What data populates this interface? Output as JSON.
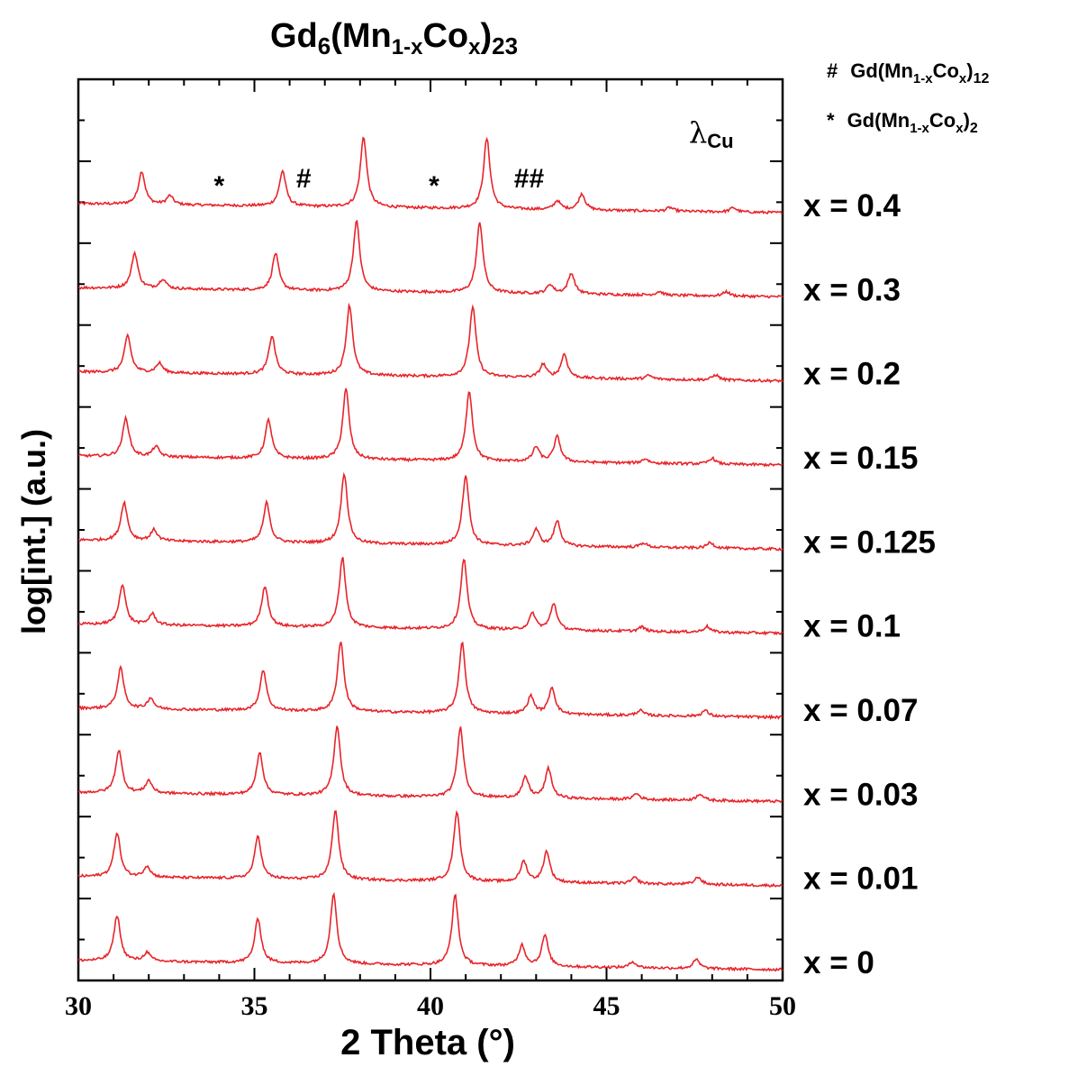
{
  "chart_data": {
    "type": "line",
    "title": {
      "main": "Gd",
      "sub1": "6",
      "mid1": "(Mn",
      "sub2": "1-x",
      "mid2": "Co",
      "sub3": "x",
      "mid3": ")",
      "sub4": "23"
    },
    "xlabel": "2 Theta (°)",
    "ylabel": "log[int.] (a.u.)",
    "xlim": [
      30,
      50
    ],
    "x_ticks": [
      "30",
      "35",
      "40",
      "45",
      "50"
    ],
    "grid": false,
    "wavelength_label": {
      "symbol": "λ",
      "sub": "Cu"
    },
    "legend": [
      {
        "symbol": "#",
        "text": "Gd(Mn",
        "sub1": "1-x",
        "mid": "Co",
        "sub2": "x",
        "end": ")",
        "sub3": "12"
      },
      {
        "symbol": "*",
        "text": "Gd(Mn",
        "sub1": "1-x",
        "mid": "Co",
        "sub2": "x",
        "end": ")",
        "sub3": "2"
      }
    ],
    "phase_markers": [
      {
        "symbol": "*",
        "x": 34.0
      },
      {
        "symbol": "#",
        "x": 36.4
      },
      {
        "symbol": "*",
        "x": 40.1
      },
      {
        "symbol": "##",
        "x": 42.8
      }
    ],
    "color": "#e8242a",
    "series": [
      {
        "name": "x = 0.4",
        "x": 0.4,
        "peaks": [
          [
            31.8,
            0.45
          ],
          [
            32.6,
            0.12
          ],
          [
            35.8,
            0.48
          ],
          [
            38.1,
            0.95
          ],
          [
            41.6,
            0.95
          ],
          [
            43.6,
            0.12
          ],
          [
            44.3,
            0.22
          ],
          [
            46.8,
            0.05
          ],
          [
            48.6,
            0.06
          ]
        ]
      },
      {
        "name": "x = 0.3",
        "x": 0.3,
        "peaks": [
          [
            31.6,
            0.48
          ],
          [
            32.4,
            0.13
          ],
          [
            35.6,
            0.5
          ],
          [
            37.9,
            0.95
          ],
          [
            41.4,
            0.95
          ],
          [
            43.4,
            0.12
          ],
          [
            44.0,
            0.28
          ],
          [
            46.5,
            0.05
          ],
          [
            48.4,
            0.06
          ]
        ]
      },
      {
        "name": "x = 0.2",
        "x": 0.2,
        "peaks": [
          [
            31.4,
            0.5
          ],
          [
            32.3,
            0.13
          ],
          [
            35.5,
            0.52
          ],
          [
            37.7,
            0.95
          ],
          [
            41.2,
            0.95
          ],
          [
            43.2,
            0.18
          ],
          [
            43.8,
            0.32
          ],
          [
            46.2,
            0.05
          ],
          [
            48.1,
            0.07
          ]
        ]
      },
      {
        "name": "x = 0.15",
        "x": 0.15,
        "peaks": [
          [
            31.35,
            0.52
          ],
          [
            32.2,
            0.14
          ],
          [
            35.4,
            0.52
          ],
          [
            37.6,
            0.95
          ],
          [
            41.1,
            0.95
          ],
          [
            43.0,
            0.2
          ],
          [
            43.6,
            0.34
          ],
          [
            46.1,
            0.06
          ],
          [
            48.0,
            0.08
          ]
        ]
      },
      {
        "name": "x = 0.125",
        "x": 0.125,
        "peaks": [
          [
            31.3,
            0.52
          ],
          [
            32.15,
            0.15
          ],
          [
            35.35,
            0.54
          ],
          [
            37.55,
            0.95
          ],
          [
            41.0,
            0.95
          ],
          [
            43.0,
            0.22
          ],
          [
            43.6,
            0.34
          ],
          [
            46.05,
            0.06
          ],
          [
            47.95,
            0.08
          ]
        ]
      },
      {
        "name": "x = 0.1",
        "x": 0.1,
        "peaks": [
          [
            31.25,
            0.55
          ],
          [
            32.1,
            0.15
          ],
          [
            35.3,
            0.55
          ],
          [
            37.5,
            0.95
          ],
          [
            40.95,
            0.95
          ],
          [
            42.9,
            0.22
          ],
          [
            43.5,
            0.36
          ],
          [
            46.0,
            0.06
          ],
          [
            47.85,
            0.08
          ]
        ]
      },
      {
        "name": "x = 0.07",
        "x": 0.07,
        "peaks": [
          [
            31.2,
            0.55
          ],
          [
            32.05,
            0.15
          ],
          [
            35.25,
            0.55
          ],
          [
            37.45,
            0.95
          ],
          [
            40.9,
            0.95
          ],
          [
            42.85,
            0.24
          ],
          [
            43.45,
            0.36
          ],
          [
            45.95,
            0.07
          ],
          [
            47.8,
            0.08
          ]
        ]
      },
      {
        "name": "x = 0.03",
        "x": 0.03,
        "peaks": [
          [
            31.15,
            0.58
          ],
          [
            32.0,
            0.17
          ],
          [
            35.15,
            0.58
          ],
          [
            37.35,
            0.95
          ],
          [
            40.85,
            0.95
          ],
          [
            42.7,
            0.28
          ],
          [
            43.35,
            0.4
          ],
          [
            45.85,
            0.08
          ],
          [
            47.65,
            0.09
          ]
        ]
      },
      {
        "name": "x = 0.01",
        "x": 0.01,
        "peaks": [
          [
            31.1,
            0.6
          ],
          [
            31.95,
            0.15
          ],
          [
            35.1,
            0.58
          ],
          [
            37.3,
            0.95
          ],
          [
            40.75,
            0.95
          ],
          [
            42.65,
            0.28
          ],
          [
            43.3,
            0.42
          ],
          [
            45.8,
            0.08
          ],
          [
            47.6,
            0.1
          ]
        ]
      },
      {
        "name": "x = 0",
        "x": 0,
        "peaks": [
          [
            31.1,
            0.62
          ],
          [
            31.95,
            0.12
          ],
          [
            35.1,
            0.6
          ],
          [
            37.25,
            0.95
          ],
          [
            40.7,
            0.95
          ],
          [
            42.6,
            0.28
          ],
          [
            43.25,
            0.42
          ],
          [
            45.75,
            0.08
          ],
          [
            47.55,
            0.12
          ]
        ]
      }
    ]
  }
}
